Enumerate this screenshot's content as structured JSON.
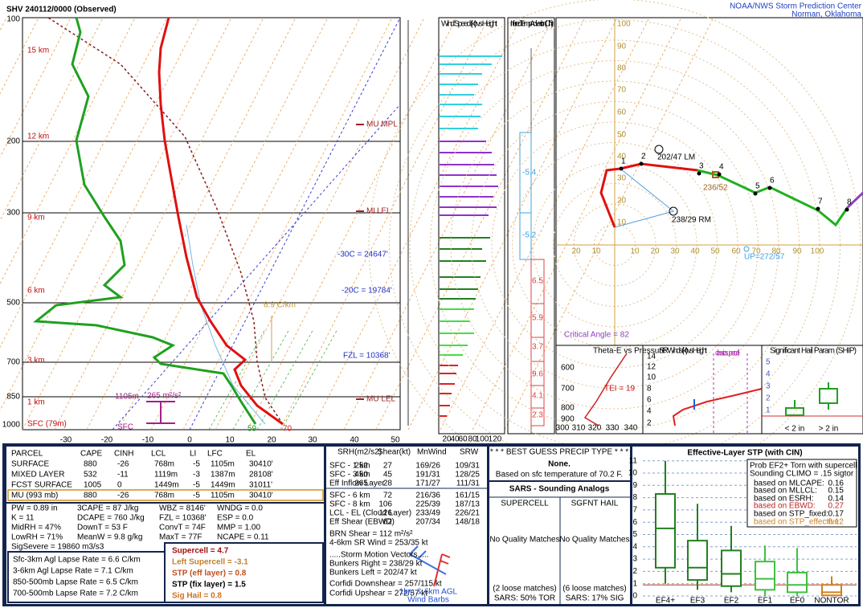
{
  "header": {
    "title": "SHV  240112/0000  (Observed)",
    "org": "NOAA/NWS Storm Prediction Center",
    "location": "Norman, Oklahoma"
  },
  "skewt": {
    "pressure_labels": [
      "100",
      "200",
      "300",
      "500",
      "700",
      "850",
      "1000"
    ],
    "temp_labels": [
      "-30",
      "-20",
      "-10",
      "0",
      "10",
      "20",
      "30",
      "40",
      "50"
    ],
    "height_labels": [
      "15 km",
      "12 km",
      "9 km",
      "6 km",
      "3 km",
      "1 km",
      "SFC (79m)"
    ],
    "annotations": {
      "mu_mpl": "MU MPL",
      "mu_el": "MU EL",
      "m30": "-30C = 24647'",
      "m20": "-20C = 19784'",
      "lapse": "6.9 C/km",
      "fzl": "FZL = 10368'",
      "eff_base": "1105m",
      "eff_srh": "265 m²/s²",
      "mu_lel": "MU LEL",
      "sfc": "SFC",
      "td": "59",
      "t": "70"
    }
  },
  "wind_panel": {
    "title": "Wind Speed (kt) vs Height",
    "ticks": [
      "20",
      "40",
      "60",
      "80",
      "100",
      "120"
    ]
  },
  "advection": {
    "title": "Inferred Temp Advection (C / hr)",
    "values": [
      "-5.4",
      "-5.2",
      "6.5",
      "5.9",
      "3.7",
      "9.6",
      "4.1",
      "2.3"
    ]
  },
  "hodograph": {
    "ticks": [
      "20",
      "10",
      "10",
      "20",
      "30",
      "40",
      "50",
      "60",
      "70",
      "80",
      "90",
      "100"
    ],
    "vticks": [
      "100",
      "90",
      "80",
      "70",
      "60",
      "50",
      "40",
      "30",
      "20",
      "10"
    ],
    "points": [
      "1",
      "2",
      "3",
      "4",
      "5",
      "6",
      "7",
      "8"
    ],
    "lm": "202/47 LM",
    "mean": "236/52",
    "rm": "238/29 RM",
    "up": "UP=272/57",
    "critical": "Critical Angle = 82"
  },
  "theta_e": {
    "title": "Theta-E vs Pressure",
    "tei": "TEI = 19",
    "yticks": [
      "600",
      "700",
      "800",
      "900"
    ],
    "xticks": [
      "300",
      "310",
      "320",
      "330",
      "340"
    ]
  },
  "sr_winds": {
    "title": "SR Winds (kt) vs Height",
    "label": "classic supercell",
    "yticks": [
      "2",
      "4",
      "6",
      "8",
      "10",
      "12",
      "14"
    ]
  },
  "ship": {
    "title": "Significant Hail Param (SHIP)",
    "yticks": [
      "1",
      "2",
      "3",
      "4",
      "5"
    ],
    "categories": [
      "< 2 in",
      "> 2 in"
    ]
  },
  "parcel": {
    "headers": [
      "PARCEL",
      "CAPE",
      "CINH",
      "LCL",
      "LI",
      "LFC",
      "EL"
    ],
    "rows": [
      [
        "SURFACE",
        "880",
        "-26",
        "768m",
        "-5",
        "1105m",
        "30410'"
      ],
      [
        "MIXED LAYER",
        "532",
        "-11",
        "1119m",
        "-3",
        "1387m",
        "28108'"
      ],
      [
        "FCST SURFACE",
        "1005",
        "0",
        "1449m",
        "-5",
        "1449m",
        "31011'"
      ],
      [
        "MU  (993 mb)",
        "880",
        "-26",
        "768m",
        "-5",
        "1105m",
        "30410'"
      ]
    ]
  },
  "indices": [
    [
      "PW = 0.89 in",
      "3CAPE = 87 J/kg",
      "WBZ = 8146'",
      "WNDG = 0.0"
    ],
    [
      "K = 11",
      "DCAPE = 760 J/kg",
      "FZL = 10368'",
      "ESP = 0.0"
    ],
    [
      "MidRH = 47%",
      "DownT = 53 F",
      "ConvT = 74F",
      "MMP = 1.00"
    ],
    [
      "LowRH = 71%",
      "MeanW = 9.8 g/kg",
      "MaxT = 77F",
      "NCAPE = 0.11"
    ],
    [
      "SigSevere = 19860 m3/s3"
    ]
  ],
  "lapse_rates": [
    "Sfc-3km Agl Lapse Rate = 6.6 C/km",
    "3-6km Agl Lapse Rate = 7.1 C/km",
    "850-500mb Lapse Rate = 6.5 C/km",
    "700-500mb Lapse Rate = 7.2 C/km"
  ],
  "composites": [
    "Supercell = 4.7",
    "Left Supercell = -3.1",
    "STP (eff layer) = 0.8",
    "STP (fix layer) = 1.5",
    "Sig Hail = 0.8"
  ],
  "kinematics": {
    "headers": [
      "SRH(m2/s2)",
      "Shear(kt)",
      "MnWind",
      "SRW"
    ],
    "rows": [
      [
        "SFC - 1 km",
        "252",
        "27",
        "169/26",
        "109/31"
      ],
      [
        "SFC - 3 km",
        "450",
        "45",
        "191/31",
        "128/25"
      ],
      [
        "Eff Inflow Layer",
        "265",
        "28",
        "171/27",
        "111/31"
      ],
      [
        "SFC - 6 km",
        "",
        "72",
        "216/36",
        "161/15"
      ],
      [
        "SFC - 8 km",
        "",
        "106",
        "225/39",
        "187/13"
      ],
      [
        "LCL - EL (Cloud Layer)",
        "",
        "126",
        "233/49",
        "226/21"
      ],
      [
        "Eff Shear (EBWD)",
        "",
        "62",
        "207/34",
        "148/18"
      ]
    ],
    "lines": [
      "BRN Shear = 112 m²/s²",
      "4-6km SR Wind =       253/35 kt",
      ".....Storm Motion Vectors.....",
      "Bunkers Right =     238/29 kt",
      "Bunkers Left =       202/47 kt",
      "Corfidi Downshear = 257/115 kt",
      "Corfidi Upshear =    272/57 kt"
    ],
    "barbs": [
      "1km & 6km AGL",
      "Wind Barbs"
    ]
  },
  "precip": {
    "title": "* * * BEST GUESS PRECIP TYPE * * *",
    "type": "None.",
    "note": "Based on sfc temperature of 70.2 F."
  },
  "sars": {
    "title": "SARS - Sounding Analogs",
    "supercell": "SUPERCELL",
    "hail": "SGFNT HAIL",
    "sc_match": "No Quality Matches",
    "hail_match": "No Quality Matches",
    "sc_loose": "(2 loose matches)",
    "hail_loose": "(6 loose matches)",
    "sc_result": "SARS:  50% TOR",
    "hail_result": "SARS:  17% SIG"
  },
  "stp": {
    "title": "Effective-Layer STP (with CIN)",
    "yticks": [
      "0",
      "1",
      "2",
      "3",
      "4",
      "5",
      "6",
      "7",
      "8",
      "9",
      "10",
      "11"
    ],
    "categories": [
      "EF4+",
      "EF3",
      "EF2",
      "EF1",
      "EF0",
      "NONTOR"
    ],
    "legend": [
      "Prob EF2+ Torn with supercell",
      "Sounding CLIMO = .15 sigtor"
    ],
    "based": [
      [
        "based on MLCAPE:",
        "0.16"
      ],
      [
        "based on MLLCL:",
        "0.15"
      ],
      [
        "based on ESRH:",
        "0.14"
      ],
      [
        "based on EBWD:",
        "0.27"
      ],
      [
        "based on STP_fixed:",
        "0.17"
      ],
      [
        "based on STP_effective:",
        "0.12"
      ]
    ]
  }
}
